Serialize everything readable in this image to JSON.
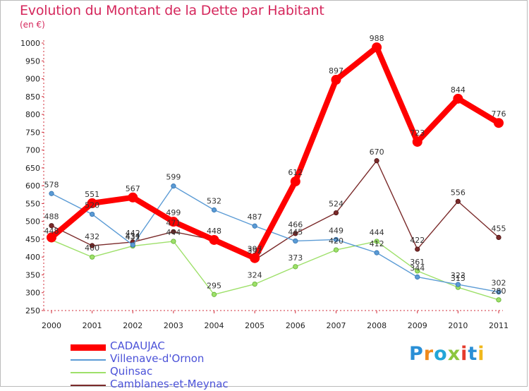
{
  "header": {
    "title": "Evolution du Montant de la Dette par Habitant",
    "subtitle": "(en €)"
  },
  "brand": {
    "text": "Proxiti",
    "colors": [
      "#2a8fd6",
      "#f08a1c",
      "#22a6d8",
      "#8cc63f",
      "#e53b2c",
      "#2a8fd6",
      "#f0b81c"
    ]
  },
  "chart_data": {
    "type": "line",
    "title": "Evolution du Montant de la Dette par Habitant",
    "subtitle": "(en €)",
    "xlabel": "",
    "ylabel": "",
    "x": [
      "2000",
      "2001",
      "2002",
      "2003",
      "2004",
      "2005",
      "2006",
      "2007",
      "2008",
      "2009",
      "2010",
      "2011"
    ],
    "ylim": [
      250,
      1000
    ],
    "yticks": [
      250,
      300,
      350,
      400,
      450,
      500,
      550,
      600,
      650,
      700,
      750,
      800,
      850,
      900,
      950,
      1000
    ],
    "grid": false,
    "legend_position": "bottom-left",
    "series": [
      {
        "name": "CADAUJAC",
        "color": "#ff0000",
        "values": [
          455,
          551,
          567,
          499,
          448,
          397,
          612,
          897,
          988,
          723,
          844,
          776
        ],
        "labels": [
          "",
          "551",
          "567",
          "499",
          "",
          "397",
          "612",
          "897",
          "988",
          "723",
          "844",
          "776"
        ]
      },
      {
        "name": "Villenave-d'Ornon",
        "color": "#5b9bd5",
        "values": [
          578,
          520,
          434,
          599,
          532,
          487,
          445,
          449,
          412,
          344,
          323,
          302
        ],
        "labels": [
          "578",
          "520",
          "434",
          "599",
          "532",
          "487",
          "445",
          "449",
          "412",
          "344",
          "323",
          "302"
        ]
      },
      {
        "name": "Quinsac",
        "color": "#9ee06a",
        "values": [
          448,
          400,
          431,
          444,
          295,
          324,
          373,
          420,
          444,
          361,
          315,
          280
        ],
        "labels": [
          "448",
          "400",
          "431",
          "444",
          "295",
          "324",
          "373",
          "420",
          "444",
          "361",
          "315",
          "280"
        ]
      },
      {
        "name": "Camblanes-et-Meynac",
        "color": "#7a2a2a",
        "values": [
          488,
          432,
          442,
          471,
          448,
          392,
          466,
          524,
          670,
          422,
          556,
          455
        ],
        "labels": [
          "488",
          "432",
          "442",
          "471",
          "448",
          "392",
          "466",
          "524",
          "670",
          "422",
          "556",
          "455"
        ]
      }
    ]
  }
}
